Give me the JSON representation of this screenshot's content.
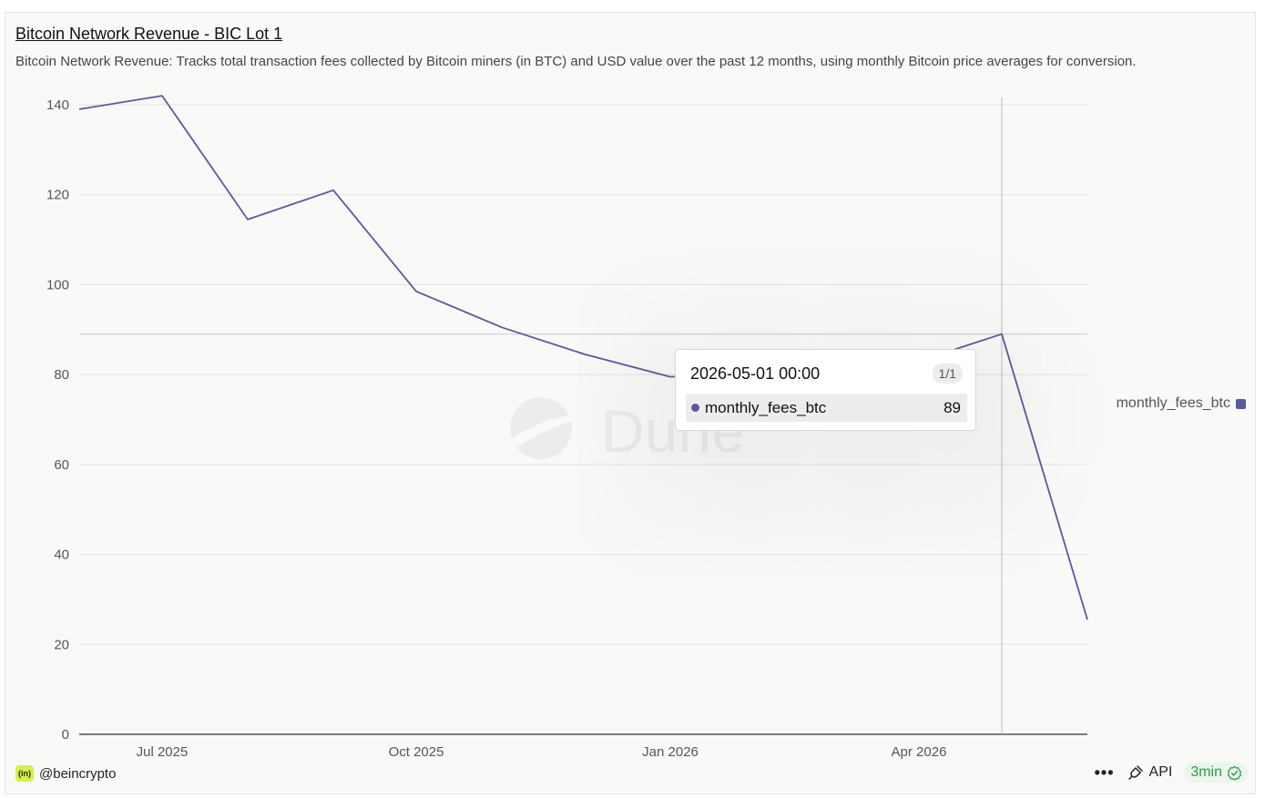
{
  "header": {
    "title": "Bitcoin Network Revenue - BIC Lot 1",
    "subtitle": "Bitcoin Network Revenue: Tracks total transaction fees collected by Bitcoin miners (in BTC) and USD value over the past 12 months, using monthly Bitcoin price averages for conversion."
  },
  "chart_data": {
    "type": "line",
    "title": "Bitcoin Network Revenue - BIC Lot 1",
    "xlabel": "",
    "ylabel": "",
    "ylim": [
      0,
      140
    ],
    "yticks": [
      "0",
      "20",
      "40",
      "60",
      "80",
      "100",
      "120",
      "140"
    ],
    "xticks": [
      {
        "label": "Jul 2025",
        "date": "2025-07-01"
      },
      {
        "label": "Oct 2025",
        "date": "2025-10-01"
      },
      {
        "label": "Jan 2026",
        "date": "2026-01-01"
      },
      {
        "label": "Apr 2026",
        "date": "2026-04-01"
      }
    ],
    "x": [
      "2025-06-01",
      "2025-07-01",
      "2025-08-01",
      "2025-09-01",
      "2025-10-01",
      "2025-11-01",
      "2025-12-01",
      "2026-01-01",
      "2026-02-01",
      "2026-03-01",
      "2026-04-01",
      "2026-05-01",
      "2026-06-01"
    ],
    "series": [
      {
        "name": "monthly_fees_btc",
        "color": "#5b5a9e",
        "values": [
          139,
          142,
          114.5,
          121,
          98.5,
          90.5,
          84.5,
          79.5,
          80.5,
          80,
          83,
          89,
          25.5
        ]
      }
    ],
    "grid": true,
    "legend": "right",
    "highlight": {
      "date": "2026-05-01",
      "value": 89
    }
  },
  "legend": {
    "label": "monthly_fees_btc",
    "color": "#5b5a9e"
  },
  "tooltip": {
    "date_label": "2026-05-01 00:00",
    "count": "1/1",
    "series_name": "monthly_fees_btc",
    "value": "89",
    "color": "#5b5a9e"
  },
  "watermark": {
    "text": "Dune"
  },
  "footer": {
    "brand_badge": "(in)",
    "brand_color": "#d4f04c",
    "author": "@beincrypto",
    "more": "•••",
    "api_label": "API",
    "refresh": "3min",
    "refresh_color": "#2e9a4a"
  }
}
